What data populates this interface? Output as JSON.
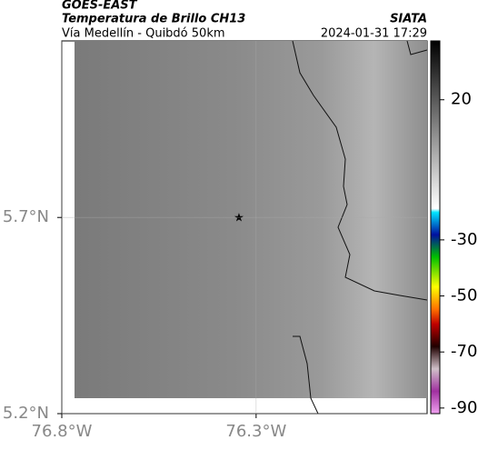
{
  "header": {
    "source": "GOES-EAST",
    "product": "Temperatura de Brillo CH13",
    "brand": "SIATA",
    "subtitle": "Vía Medellín - Quibdó 50km",
    "timestamp": "2024-01-31 17:29"
  },
  "map": {
    "lonlim": [
      -76.8,
      -75.86
    ],
    "latlim": [
      5.2,
      6.15
    ],
    "lon_ticks": [
      {
        "value": -76.8,
        "label": "76.8°W"
      },
      {
        "value": -76.3,
        "label": "76.3°W"
      }
    ],
    "lat_ticks": [
      {
        "value": 5.7,
        "label": "5.7°N"
      },
      {
        "value": 5.2,
        "label": "5.2°N"
      }
    ]
  },
  "colorbar": {
    "lim": [
      41,
      -92
    ],
    "ticks": [
      20,
      -30,
      -50,
      -70,
      -90
    ]
  }
}
